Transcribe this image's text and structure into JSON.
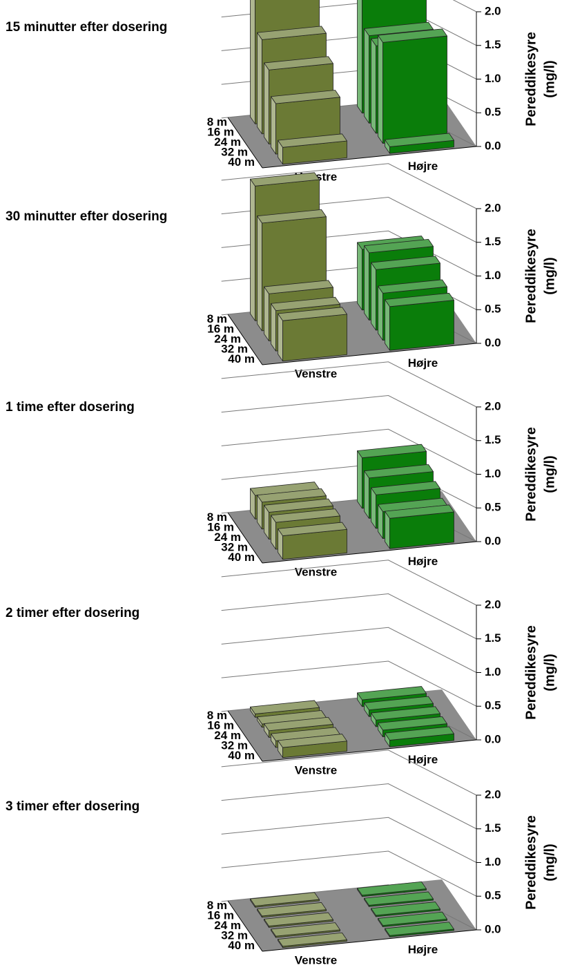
{
  "chart_data": [
    {
      "type": "bar3d",
      "title": "15 minutter efter dosering",
      "ylabel": [
        "Pereddikesyre",
        "(mg/l)"
      ],
      "categories": [
        "Venstre",
        "Højre"
      ],
      "colors": [
        "#6b7a35",
        "#0a7d0a"
      ],
      "series": [
        {
          "name": "8 m",
          "values": [
            2.0,
            1.9
          ]
        },
        {
          "name": "16 m",
          "values": [
            1.4,
            1.3
          ]
        },
        {
          "name": "24 m",
          "values": [
            1.1,
            1.3
          ]
        },
        {
          "name": "32 m",
          "values": [
            0.75,
            1.5
          ]
        },
        {
          "name": "40 m",
          "values": [
            0.25,
            0.1
          ]
        }
      ],
      "ylim": [
        0,
        2
      ],
      "yticks": [
        {
          "value": 0,
          "label": "0.0"
        },
        0.5,
        {
          "value": 1,
          "label": "1.0"
        },
        1.5,
        {
          "value": 2,
          "label": "2.0"
        }
      ],
      "grid": true
    },
    {
      "type": "bar3d",
      "title": "30 minutter efter dosering",
      "ylabel": [
        "Pereddikesyre",
        "(mg/l)"
      ],
      "categories": [
        "Venstre",
        "Højre"
      ],
      "colors": [
        "#6b7a35",
        "#0a7d0a"
      ],
      "series": [
        {
          "name": "8 m",
          "values": [
            2.0,
            0.9
          ]
        },
        {
          "name": "16 m",
          "values": [
            1.6,
            1.0
          ]
        },
        {
          "name": "24 m",
          "values": [
            0.7,
            0.9
          ]
        },
        {
          "name": "32 m",
          "values": [
            0.6,
            0.7
          ]
        },
        {
          "name": "40 m",
          "values": [
            0.6,
            0.65
          ]
        }
      ],
      "ylim": [
        0,
        2
      ],
      "yticks": [
        {
          "value": 0,
          "label": "0.0"
        },
        0.5,
        {
          "value": 1,
          "label": "1.0"
        },
        1.5,
        {
          "value": 2,
          "label": "2.0"
        }
      ],
      "grid": true
    },
    {
      "type": "bar3d",
      "title": "1 time efter dosering",
      "ylabel": [
        "Pereddikesyre",
        "(mg/l)"
      ],
      "categories": [
        "Venstre",
        "Højre"
      ],
      "colors": [
        "#6b7a35",
        "#0a7d0a"
      ],
      "series": [
        {
          "name": "8 m",
          "values": [
            0.35,
            0.75
          ]
        },
        {
          "name": "16 m",
          "values": [
            0.4,
            0.6
          ]
        },
        {
          "name": "24 m",
          "values": [
            0.4,
            0.5
          ]
        },
        {
          "name": "32 m",
          "values": [
            0.4,
            0.4
          ]
        },
        {
          "name": "40 m",
          "values": [
            0.35,
            0.45
          ]
        }
      ],
      "ylim": [
        0,
        2
      ],
      "yticks": [
        {
          "value": 0,
          "label": "0.0"
        },
        0.5,
        {
          "value": 1,
          "label": "1.0"
        },
        1.5,
        {
          "value": 2,
          "label": "2.0"
        }
      ],
      "grid": true
    },
    {
      "type": "bar3d",
      "title": "2 timer efter dosering",
      "ylabel": [
        "Pereddikesyre",
        "(mg/l)"
      ],
      "categories": [
        "Venstre",
        "Højre"
      ],
      "colors": [
        "#6b7a35",
        "#0a7d0a"
      ],
      "series": [
        {
          "name": "8 m",
          "values": [
            0.05,
            0.1
          ]
        },
        {
          "name": "16 m",
          "values": [
            0.05,
            0.1
          ]
        },
        {
          "name": "24 m",
          "values": [
            0.1,
            0.1
          ]
        },
        {
          "name": "32 m",
          "values": [
            0.1,
            0.1
          ]
        },
        {
          "name": "40 m",
          "values": [
            0.15,
            0.1
          ]
        }
      ],
      "ylim": [
        0,
        2
      ],
      "yticks": [
        {
          "value": 0,
          "label": "0.0"
        },
        0.5,
        {
          "value": 1,
          "label": "1.0"
        },
        1.5,
        {
          "value": 2,
          "label": "2.0"
        }
      ],
      "grid": true
    },
    {
      "type": "bar3d",
      "title": "3 timer efter dosering",
      "ylabel": [
        "Pereddikesyre",
        "(mg/l)"
      ],
      "categories": [
        "Venstre",
        "Højre"
      ],
      "colors": [
        "#6b7a35",
        "#0a7d0a"
      ],
      "series": [
        {
          "name": "8 m",
          "values": [
            0.02,
            0.02
          ]
        },
        {
          "name": "16 m",
          "values": [
            0.02,
            0.02
          ]
        },
        {
          "name": "24 m",
          "values": [
            0.02,
            0.02
          ]
        },
        {
          "name": "32 m",
          "values": [
            0.02,
            0.02
          ]
        },
        {
          "name": "40 m",
          "values": [
            0.02,
            0.02
          ]
        }
      ],
      "ylim": [
        0,
        2
      ],
      "yticks": [
        {
          "value": 0,
          "label": "0.0"
        },
        0.5,
        {
          "value": 1,
          "label": "1.0"
        },
        1.5,
        {
          "value": 2,
          "label": "2.0"
        }
      ],
      "grid": true
    }
  ]
}
